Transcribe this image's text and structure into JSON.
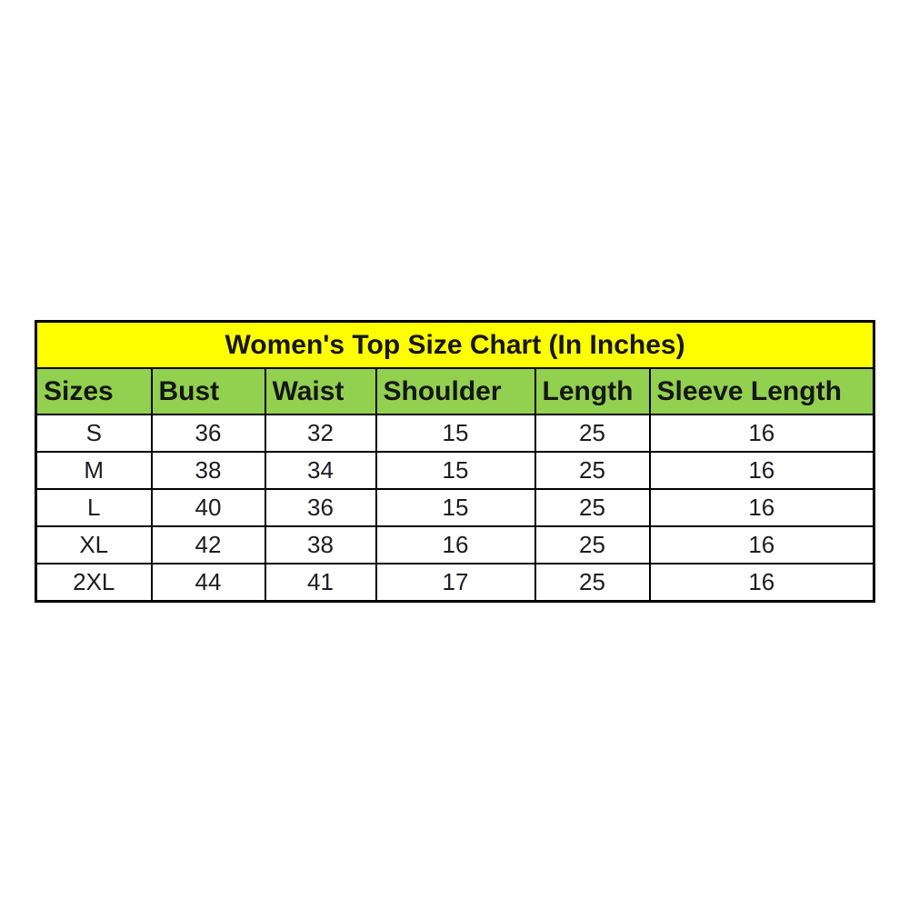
{
  "colors": {
    "page_bg": "#ffffff",
    "title_bg": "#ffff00",
    "header_bg": "#92d050",
    "border": "#000000",
    "text": "#161616"
  },
  "chart_data": {
    "type": "table",
    "title": "Women's Top Size Chart (In Inches)",
    "unit": "Inches",
    "columns": [
      "Sizes",
      "Bust",
      "Waist",
      "Shoulder",
      "Length",
      "Sleeve Length"
    ],
    "rows": [
      [
        "S",
        "36",
        "32",
        "15",
        "25",
        "16"
      ],
      [
        "M",
        "38",
        "34",
        "15",
        "25",
        "16"
      ],
      [
        "L",
        "40",
        "36",
        "15",
        "25",
        "16"
      ],
      [
        "XL",
        "42",
        "38",
        "16",
        "25",
        "16"
      ],
      [
        "2XL",
        "44",
        "41",
        "17",
        "25",
        "16"
      ]
    ],
    "layout": {
      "title_row_bg": "#ffff00",
      "header_row_bg": "#92d050",
      "data_row_bg": "#ffffff",
      "grid": true,
      "header_align": "left",
      "data_align": "center"
    }
  }
}
